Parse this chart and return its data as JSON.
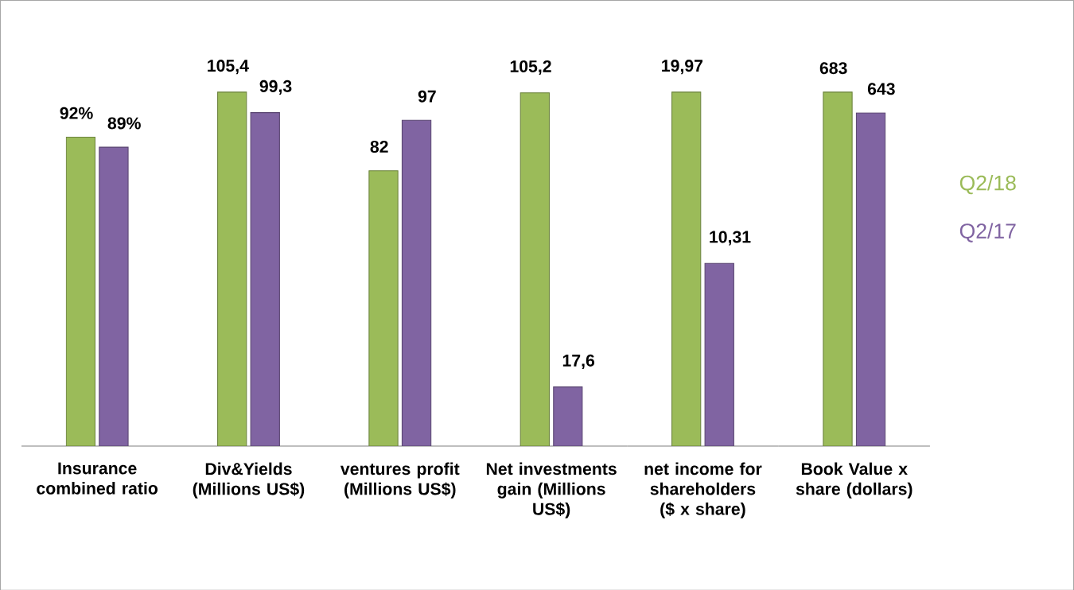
{
  "chart_data": [
    {
      "type": "bar",
      "categories": [
        "Insurance combined ratio",
        "Div&Yields (Millions US$)",
        "ventures profit (Millions US$)",
        "Net investments gain (Millions US$)"
      ],
      "series": [
        {
          "color": "#9bbb59",
          "values": [
            92,
            105.4,
            82,
            105.2
          ],
          "value_labels": [
            "92%",
            "105,4",
            "82",
            "105,2"
          ]
        },
        {
          "color": "#8064a2",
          "values": [
            89,
            99.3,
            97,
            17.6
          ],
          "value_labels": [
            "89%",
            "99,3",
            "97",
            "17,6"
          ]
        }
      ]
    },
    {
      "type": "bar",
      "categories": [
        "net income for shareholders ($ x share)"
      ],
      "series": [
        {
          "color": "#9bbb59",
          "values": [
            19.97
          ],
          "value_labels": [
            "19,97"
          ]
        },
        {
          "color": "#8064a2",
          "values": [
            10.31
          ],
          "value_labels": [
            "10,31"
          ]
        }
      ]
    },
    {
      "type": "bar",
      "legend": "right",
      "categories": [
        "Book Value x share (dollars)"
      ],
      "series": [
        {
          "name": "Q2/18",
          "color": "#9bbb59",
          "values": [
            683
          ],
          "value_labels": [
            "683"
          ]
        },
        {
          "name": "Q2/17",
          "color": "#8064a2",
          "values": [
            643
          ],
          "value_labels": [
            "643"
          ]
        }
      ]
    }
  ]
}
